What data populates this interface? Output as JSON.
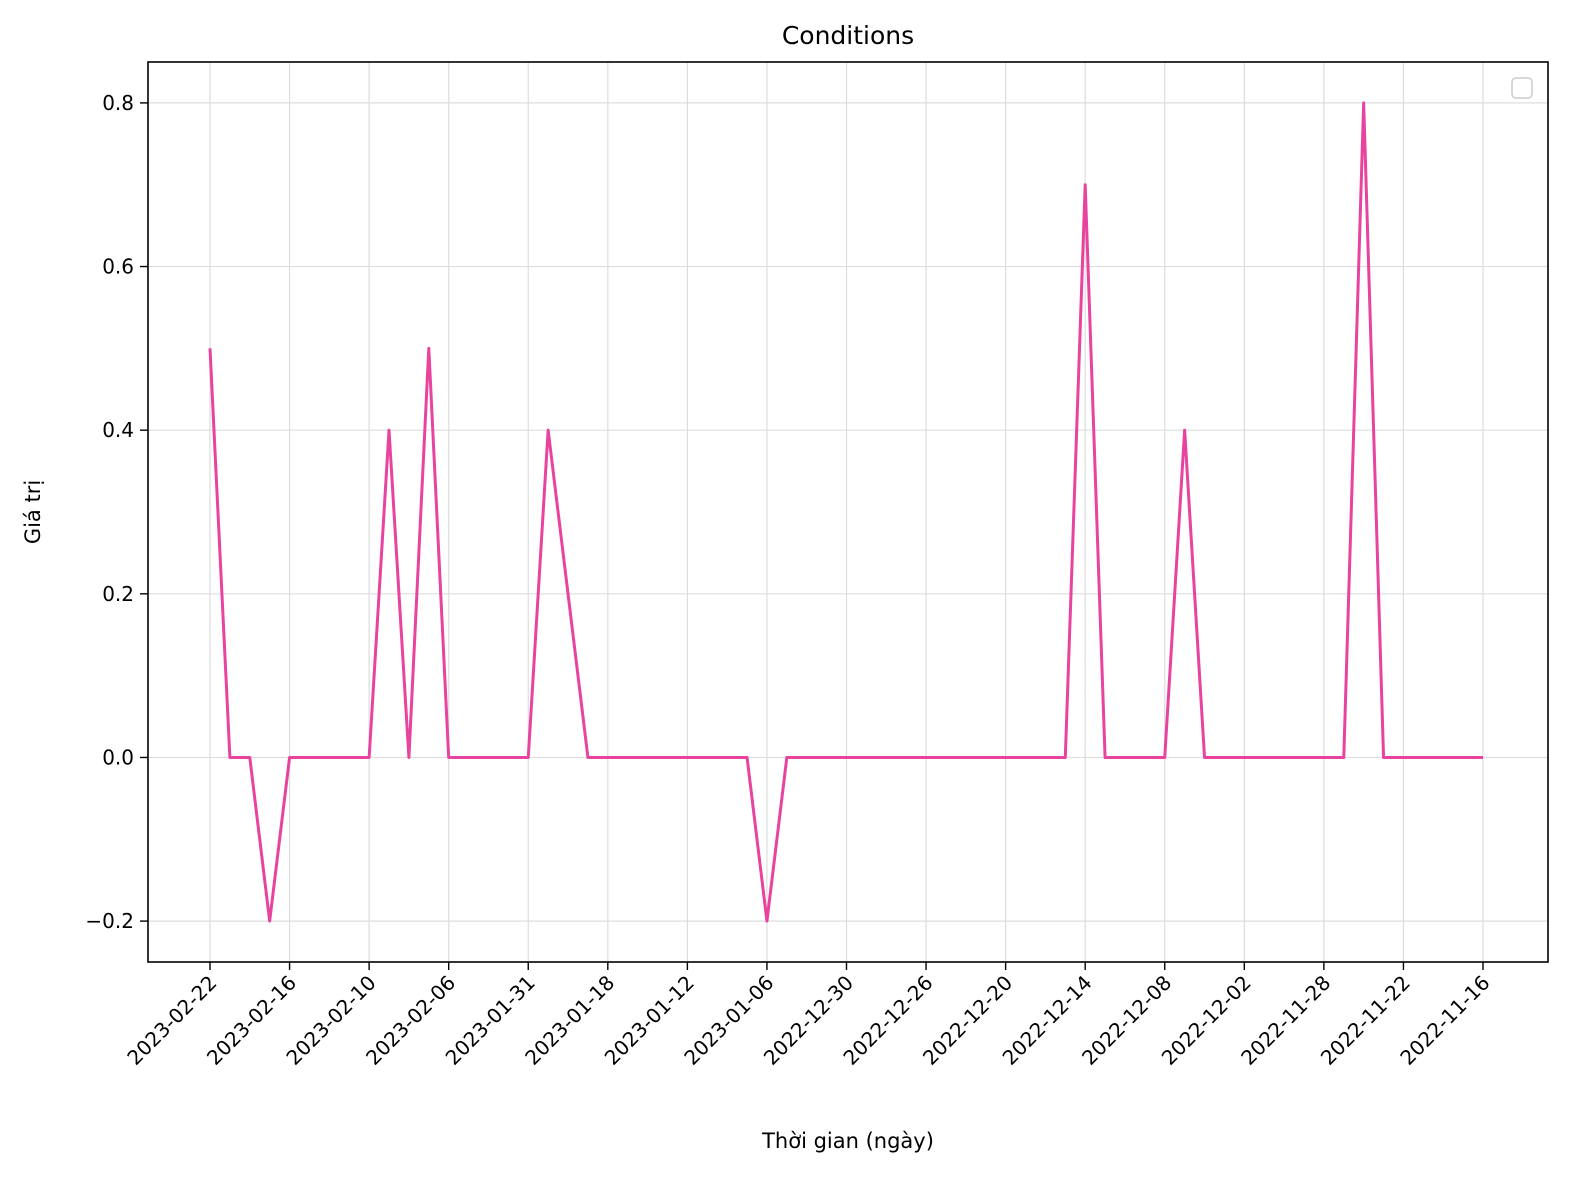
{
  "chart_data": {
    "type": "line",
    "title": "Conditions",
    "xlabel": "Thời gian (ngày)",
    "ylabel": "Giá trị",
    "x_tick_labels": [
      "2023-02-22",
      "2023-02-16",
      "2023-02-10",
      "2023-02-06",
      "2023-01-31",
      "2023-01-18",
      "2023-01-12",
      "2023-01-06",
      "2022-12-30",
      "2022-12-26",
      "2022-12-20",
      "2022-12-14",
      "2022-12-08",
      "2022-12-02",
      "2022-11-28",
      "2022-11-22",
      "2022-11-16"
    ],
    "y_ticks": [
      -0.2,
      0.0,
      0.2,
      0.4,
      0.6,
      0.8
    ],
    "y_tick_labels": [
      "−0.2",
      "0.0",
      "0.2",
      "0.4",
      "0.6",
      "0.8"
    ],
    "ylim": [
      -0.25,
      0.85
    ],
    "grid": true,
    "legend": "upper-right, empty",
    "series": [
      {
        "color": "#e8439f",
        "values": [
          0.5,
          0.0,
          0.0,
          -0.2,
          0.0,
          0.0,
          0.0,
          0.0,
          0.0,
          0.4,
          0.0,
          0.5,
          0.0,
          0.0,
          0.0,
          0.0,
          0.0,
          0.4,
          0.2,
          0.0,
          0.0,
          0.0,
          0.0,
          0.0,
          0.0,
          0.0,
          0.0,
          0.0,
          -0.2,
          0.0,
          0.0,
          0.0,
          0.0,
          0.0,
          0.0,
          0.0,
          0.0,
          0.0,
          0.0,
          0.0,
          0.0,
          0.0,
          0.0,
          0.0,
          0.7,
          0.0,
          0.0,
          0.0,
          0.0,
          0.4,
          0.0,
          0.0,
          0.0,
          0.0,
          0.0,
          0.0,
          0.0,
          0.0,
          0.8,
          0.0,
          0.0,
          0.0,
          0.0,
          0.0,
          0.0
        ]
      }
    ]
  }
}
